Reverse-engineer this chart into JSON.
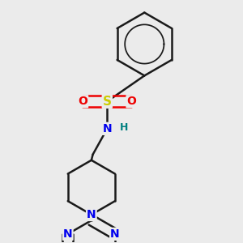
{
  "bg_color": "#ebebeb",
  "line_color": "#1a1a1a",
  "bond_width": 1.8,
  "atom_colors": {
    "N": "#0000ee",
    "S": "#cccc00",
    "O": "#ee0000",
    "H": "#008080",
    "C": "#1a1a1a"
  },
  "font_size": 10,
  "fig_width": 3.0,
  "fig_height": 3.0,
  "dpi": 100
}
